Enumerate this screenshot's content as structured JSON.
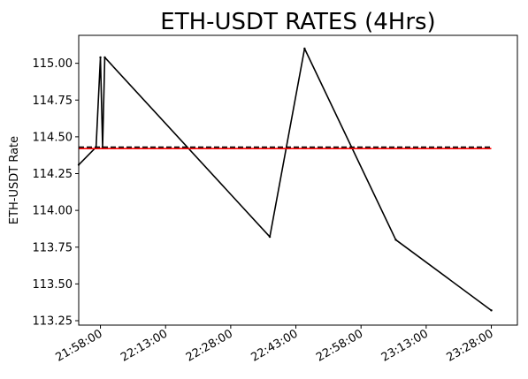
{
  "chart_data": {
    "type": "line",
    "title": "ETH-USDT RATES (4Hrs)",
    "xlabel": "",
    "ylabel": "ETH-USDT Rate",
    "x_tick_labels": [
      "21:58:00",
      "22:13:00",
      "22:28:00",
      "22:43:00",
      "22:58:00",
      "23:13:00",
      "23:28:00"
    ],
    "x_tick_values": [
      "21:58:00",
      "22:13:00",
      "22:28:00",
      "22:43:00",
      "22:58:00",
      "23:13:00",
      "23:28:00"
    ],
    "y_tick_labels": [
      "113.25",
      "113.50",
      "113.75",
      "114.00",
      "114.25",
      "114.50",
      "114.75",
      "115.00"
    ],
    "y_tick_values": [
      113.25,
      113.5,
      113.75,
      114.0,
      114.25,
      114.5,
      114.75,
      115.0
    ],
    "xlim": [
      "21:53:00",
      "23:34:00"
    ],
    "ylim": [
      113.22,
      115.19
    ],
    "grid": false,
    "series": [
      {
        "color": "#000000",
        "style": "solid",
        "x": [
          "21:53:00",
          "21:57:00",
          "21:58:00",
          "21:58:30",
          "21:59:00",
          "22:37:00",
          "22:45:00",
          "23:06:00",
          "23:28:00"
        ],
        "values": [
          114.31,
          114.43,
          115.04,
          114.43,
          115.04,
          113.82,
          115.1,
          113.8,
          113.32
        ]
      },
      {
        "color": "#ff0000",
        "style": "solid",
        "x": [
          "21:53:00",
          "23:28:00"
        ],
        "values": [
          114.42,
          114.42
        ]
      },
      {
        "color": "#000000",
        "style": "dashed",
        "x": [
          "21:53:00",
          "23:28:00"
        ],
        "values": [
          114.43,
          114.43
        ]
      }
    ]
  }
}
